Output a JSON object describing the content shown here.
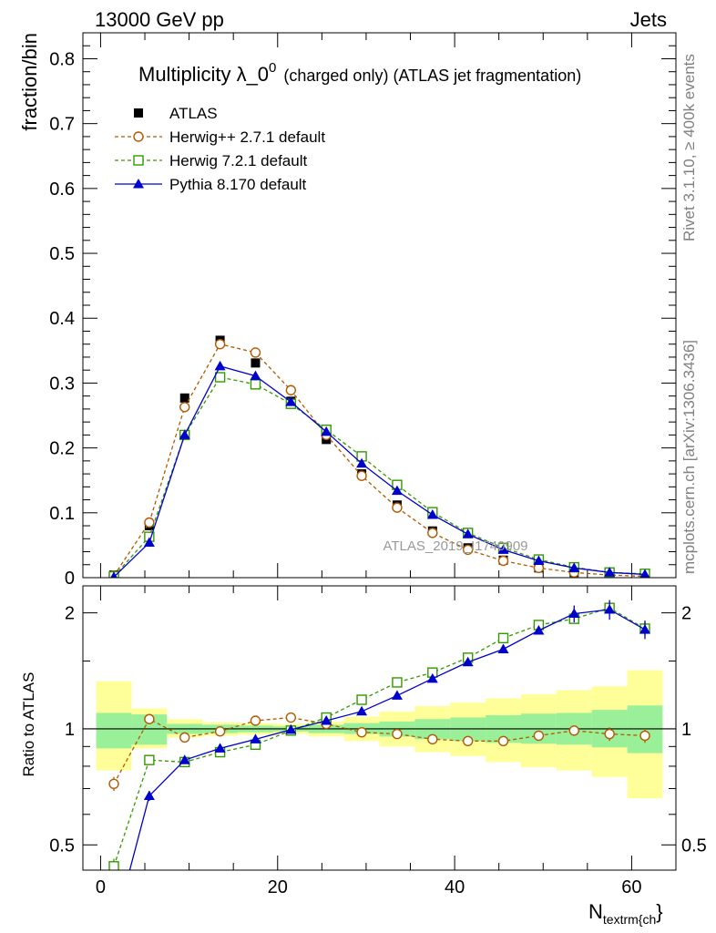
{
  "header": {
    "left": "13000 GeV pp",
    "right": "Jets"
  },
  "side_labels": {
    "rivet": "Rivet 3.1.10, ≥ 400k events",
    "mcplots": "mcplots.cern.ch [arXiv:1306.3436]"
  },
  "watermark": "ATLAS_2019_I1740909",
  "chart_data": [
    {
      "type": "line",
      "panel": "main",
      "title": "Multiplicity λ_0⁰ (charged only) (ATLAS jet fragmentation)",
      "title_main": "Multiplicity λ_0",
      "title_sup": "0",
      "title_rest": "(charged only) (ATLAS jet fragmentation)",
      "ylabel": "fraction/bin",
      "xlabel": "N_textrm{ch}",
      "xlabel_main": "N",
      "xlabel_sub": "textrm{ch",
      "xlabel_end": "}",
      "xlim": [
        -2,
        65
      ],
      "ylim": [
        0,
        0.84
      ],
      "yticks": [
        0,
        0.1,
        0.2,
        0.3,
        0.4,
        0.5,
        0.6,
        0.7,
        0.8
      ],
      "ytick_labels": [
        "0",
        "0.1",
        "0.2",
        "0.3",
        "0.4",
        "0.5",
        "0.6",
        "0.7",
        "0.8"
      ],
      "x": [
        1.5,
        5.5,
        9.5,
        13.5,
        17.5,
        21.5,
        25.5,
        29.5,
        33.5,
        37.5,
        41.5,
        45.5,
        49.5,
        53.5,
        57.5,
        61.5
      ],
      "series": [
        {
          "name": "ATLAS",
          "color": "#000000",
          "marker": "square-filled",
          "values": [
            0.004,
            0.08,
            0.277,
            0.366,
            0.331,
            0.272,
            0.213,
            0.16,
            0.112,
            0.072,
            0.046,
            0.027,
            0.015,
            0.008,
            0.004,
            0.003
          ]
        },
        {
          "name": "Herwig++ 2.7.1 default",
          "color": "#b35900",
          "marker": "circle-open",
          "dash": "4,3",
          "values": [
            0.003,
            0.085,
            0.263,
            0.36,
            0.347,
            0.289,
            0.22,
            0.157,
            0.108,
            0.069,
            0.043,
            0.026,
            0.015,
            0.008,
            0.004,
            0.002
          ]
        },
        {
          "name": "Herwig 7.2.1 default",
          "color": "#339900",
          "marker": "square-open",
          "dash": "4,3",
          "values": [
            0.002,
            0.063,
            0.22,
            0.309,
            0.298,
            0.268,
            0.228,
            0.187,
            0.143,
            0.101,
            0.069,
            0.046,
            0.028,
            0.016,
            0.008,
            0.006
          ]
        },
        {
          "name": "Pythia 8.170 default",
          "color": "#0000cc",
          "marker": "triangle-filled",
          "values": [
            0.001,
            0.054,
            0.22,
            0.326,
            0.311,
            0.271,
            0.225,
            0.176,
            0.134,
            0.097,
            0.067,
            0.043,
            0.026,
            0.015,
            0.008,
            0.005
          ]
        }
      ]
    },
    {
      "type": "line",
      "panel": "ratio",
      "ylabel": "Ratio to ATLAS",
      "yscale": "log",
      "ylim": [
        0.43,
        2.35
      ],
      "yticks": [
        0.5,
        1,
        2
      ],
      "ytick_labels": [
        "0.5",
        "1",
        "2"
      ],
      "xticks": [
        0,
        20,
        40,
        60
      ],
      "xtick_labels": [
        "0",
        "20",
        "40",
        "60"
      ],
      "bin_edges": [
        -0.5,
        3.5,
        7.5,
        11.5,
        15.5,
        19.5,
        23.5,
        27.5,
        31.5,
        35.5,
        39.5,
        43.5,
        47.5,
        51.5,
        55.5,
        59.5,
        63.5
      ],
      "band_inner": {
        "color": "#99f099",
        "lo": [
          0.89,
          0.91,
          0.97,
          0.975,
          0.98,
          0.985,
          0.975,
          0.97,
          0.955,
          0.94,
          0.93,
          0.92,
          0.915,
          0.91,
          0.895,
          0.865
        ],
        "hi": [
          1.1,
          1.09,
          1.03,
          1.025,
          1.02,
          1.015,
          1.025,
          1.035,
          1.045,
          1.06,
          1.07,
          1.085,
          1.095,
          1.1,
          1.12,
          1.15
        ]
      },
      "band_outer": {
        "color": "#ffff99",
        "lo": [
          0.78,
          0.89,
          0.95,
          0.96,
          0.965,
          0.97,
          0.955,
          0.93,
          0.9,
          0.87,
          0.85,
          0.82,
          0.795,
          0.78,
          0.75,
          0.66
        ],
        "hi": [
          1.33,
          1.13,
          1.06,
          1.04,
          1.035,
          1.03,
          1.045,
          1.075,
          1.11,
          1.145,
          1.17,
          1.2,
          1.23,
          1.26,
          1.29,
          1.42
        ]
      },
      "x": [
        1.5,
        5.5,
        9.5,
        13.5,
        17.5,
        21.5,
        25.5,
        29.5,
        33.5,
        37.5,
        41.5,
        45.5,
        49.5,
        53.5,
        57.5,
        61.5
      ],
      "series": [
        {
          "name": "Herwig++ 2.7.1 default",
          "color": "#b35900",
          "marker": "circle-open",
          "dash": "4,3",
          "values": [
            0.72,
            1.06,
            0.95,
            0.985,
            1.05,
            1.07,
            1.03,
            0.98,
            0.97,
            0.94,
            0.93,
            0.93,
            0.96,
            0.99,
            0.97,
            0.96
          ],
          "err": [
            0.03,
            0,
            0,
            0,
            0,
            0,
            0,
            0,
            0,
            0,
            0,
            0,
            0,
            0.03,
            0.04,
            0.04
          ]
        },
        {
          "name": "Herwig 7.2.1 default",
          "color": "#339900",
          "marker": "square-open",
          "dash": "4,3",
          "values": [
            0.44,
            0.83,
            0.82,
            0.87,
            0.91,
            0.99,
            1.07,
            1.19,
            1.32,
            1.4,
            1.53,
            1.72,
            1.86,
            1.93,
            2.06,
            1.82
          ],
          "err": [
            0.02,
            0,
            0,
            0,
            0,
            0,
            0,
            0,
            0,
            0,
            0,
            0,
            0,
            0.05,
            0.07,
            0.07
          ]
        },
        {
          "name": "Pythia 8.170 default",
          "color": "#0000cc",
          "marker": "triangle-filled",
          "values": [
            0.3,
            0.67,
            0.83,
            0.89,
            0.94,
            0.995,
            1.05,
            1.11,
            1.22,
            1.35,
            1.49,
            1.61,
            1.8,
            1.99,
            2.04,
            1.81
          ],
          "err": [
            0.02,
            0.02,
            0,
            0,
            0,
            0,
            0,
            0,
            0,
            0,
            0,
            0.04,
            0.04,
            0.1,
            0.12,
            0.1
          ]
        }
      ]
    }
  ]
}
